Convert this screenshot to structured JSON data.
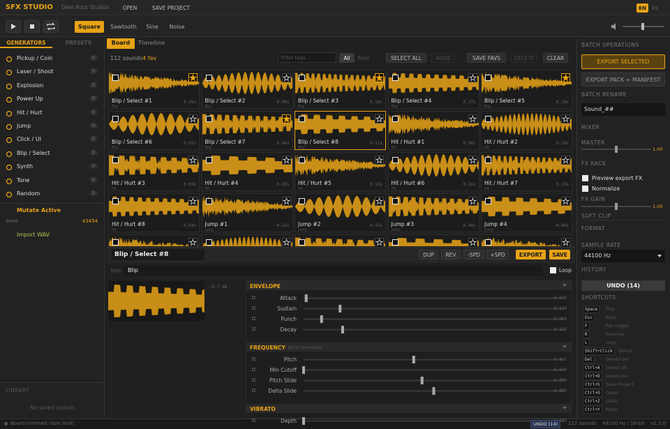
{
  "app": {
    "title": "SFX STUDIO",
    "studio": "Deer Rock Studios",
    "menu": [
      "OPEN",
      "SAVE PROJECT"
    ],
    "langs": [
      "EN",
      "ES"
    ],
    "active_lang": 0
  },
  "toolbar": {
    "waves": [
      "Square",
      "Sawtooth",
      "Sine",
      "Noise"
    ],
    "active_wave": 0
  },
  "sidebar": {
    "tabs": [
      "GENERATORS",
      "PRESETS"
    ],
    "generators": [
      {
        "name": "Pickup / Coin",
        "count": 0
      },
      {
        "name": "Laser / Shoot",
        "count": 0
      },
      {
        "name": "Explosion",
        "count": 0
      },
      {
        "name": "Power Up",
        "count": 0
      },
      {
        "name": "Hit / Hurt",
        "count": 0
      },
      {
        "name": "Jump",
        "count": 0
      },
      {
        "name": "Click / UI",
        "count": 0
      },
      {
        "name": "Blip / Select",
        "count": 0
      },
      {
        "name": "Synth",
        "count": 0
      },
      {
        "name": "Tone",
        "count": 0
      },
      {
        "name": "Random",
        "count": 0
      }
    ],
    "mutate": "Mutate Active",
    "seed_label": "Seed",
    "seed": 43454,
    "import": "Import WAV",
    "library_title": "LIBRARY",
    "library_empty": "No saved sounds"
  },
  "board": {
    "tabs": [
      "Board",
      "Timeline"
    ],
    "count": "112 sounds",
    "favs": "4 fav",
    "filter_placeholder": "Filter tags...",
    "filters": [
      "All",
      "Favs"
    ],
    "actions": [
      "SELECT ALL",
      "NONE",
      "SAVE FAVS",
      "DELETE",
      "CLEAR"
    ],
    "selected": 7,
    "cards": [
      {
        "name": "Blip / Select #1",
        "tag": "Blip",
        "duration": "0.18s",
        "fav": true
      },
      {
        "name": "Blip / Select #2",
        "tag": "Blip",
        "duration": "0.08s",
        "fav": false
      },
      {
        "name": "Blip / Select #3",
        "tag": "Blip",
        "duration": "0.18s",
        "fav": true
      },
      {
        "name": "Blip / Select #4",
        "tag": "Blip",
        "duration": "0.17s",
        "fav": false
      },
      {
        "name": "Blip / Select #5",
        "tag": "Blip",
        "duration": "0.18s",
        "fav": true
      },
      {
        "name": "Blip / Select #6",
        "tag": "Blip",
        "duration": "0.02s",
        "fav": false
      },
      {
        "name": "Blip / Select #7",
        "tag": "Blip",
        "duration": "0.04s",
        "fav": true
      },
      {
        "name": "Blip / Select #8",
        "tag": "Blip",
        "duration": "0.11s",
        "fav": false
      },
      {
        "name": "Hit / Hurt #1",
        "tag": "Hit",
        "duration": "0.08s",
        "fav": false
      },
      {
        "name": "Hit / Hurt #2",
        "tag": "Hit",
        "duration": "0.18s",
        "fav": false
      },
      {
        "name": "Hit / Hurt #3",
        "tag": "Hit",
        "duration": "0.09s",
        "fav": false
      },
      {
        "name": "Hit / Hurt #4",
        "tag": "Hit",
        "duration": "0.03s",
        "fav": false
      },
      {
        "name": "Hit / Hurt #5",
        "tag": "Hit",
        "duration": "0.13s",
        "fav": false
      },
      {
        "name": "Hit / Hurt #6",
        "tag": "Hit",
        "duration": "0.16s",
        "fav": false
      },
      {
        "name": "Hit / Hurt #7",
        "tag": "Hit",
        "duration": "0.15s",
        "fav": false
      },
      {
        "name": "Hit / Hurt #8",
        "tag": "Hit",
        "duration": "0.04s",
        "fav": false
      },
      {
        "name": "Jump #1",
        "tag": "Jump",
        "duration": "0.12s",
        "fav": false
      },
      {
        "name": "Jump #2",
        "tag": "Jump",
        "duration": "0.15s",
        "fav": false
      },
      {
        "name": "Jump #3",
        "tag": "Jump",
        "duration": "0.44s",
        "fav": false
      },
      {
        "name": "Jump #4",
        "tag": "Jump",
        "duration": "0.08s",
        "fav": false
      }
    ]
  },
  "editor": {
    "name": "Blip / Select #8",
    "actions": [
      "DUP",
      "REV",
      "-SPD",
      "+SPD",
      "EXPORT",
      "SAVE"
    ],
    "tags_label": "Tags",
    "tags": "Blip",
    "loop": "Loop",
    "peak": "-0.7 dB",
    "sections": [
      {
        "title": "ENVELOPE",
        "params": [
          {
            "name": "Attack",
            "value": 0.01,
            "label": "0.010",
            "min": 0,
            "max": 1
          },
          {
            "name": "Sustain",
            "value": 0.14,
            "label": "0.140",
            "min": 0,
            "max": 1
          },
          {
            "name": "Punch",
            "value": 0.069,
            "label": "0.069",
            "min": 0,
            "max": 1
          },
          {
            "name": "Decay",
            "value": 0.15,
            "label": "0.150",
            "min": 0,
            "max": 1
          }
        ]
      },
      {
        "title": "FREQUENCY",
        "subtitle": "— pitch envelope",
        "params": [
          {
            "name": "Pitch",
            "value": 0.423,
            "label": "0.423",
            "min": 0,
            "max": 1
          },
          {
            "name": "Min Cutoff",
            "value": 0,
            "label": "0.000",
            "min": 0,
            "max": 1
          },
          {
            "name": "Pitch Slide",
            "value": -0.09,
            "label": "-0.090",
            "min": -1,
            "max": 1
          },
          {
            "name": "Delta Slide",
            "value": 0,
            "label": "0.000",
            "min": -1,
            "max": 1
          }
        ]
      },
      {
        "title": "VIBRATO",
        "params": [
          {
            "name": "Depth",
            "value": 0,
            "label": "0.000",
            "min": 0,
            "max": 1
          }
        ]
      }
    ]
  },
  "right": {
    "batch_title": "BATCH OPERATIONS",
    "export_selected": "EXPORT SELECTED",
    "export_pack": "EXPORT PACK + MANIFEST",
    "rename_title": "BATCH RENAME",
    "rename_value": "Sound_##",
    "mixer_title": "MIXER",
    "master_label": "MASTER",
    "master": 1,
    "master_label_value": "1.00",
    "fx_title": "FX RACK",
    "preview_fx": "Preview export FX",
    "normalize": "Normalize",
    "fx_gain_label": "FX GAIN",
    "fx_gain": 1,
    "fx_gain_label_value": "1.00",
    "soft_clip": "SOFT CLIP",
    "format_title": "FORMAT",
    "sample_rate_label": "SAMPLE RATE",
    "sample_rate": "44100 Hz",
    "history_title": "HISTORY",
    "undo": "UNDO (14)",
    "shortcuts_title": "SHORTCUTS",
    "shortcuts": [
      {
        "key": "Space",
        "action": "Play"
      },
      {
        "key": "Esc",
        "action": "Stop"
      },
      {
        "key": "F",
        "action": "Fav toggle"
      },
      {
        "key": "R",
        "action": "Reverse"
      },
      {
        "key": "L",
        "action": "Loop"
      },
      {
        "key": "Shift+Click",
        "action": "Select"
      },
      {
        "key": "Del",
        "action": "Delete sel"
      },
      {
        "key": "Ctrl+A",
        "action": "Select all"
      },
      {
        "key": "Ctrl+D",
        "action": "Duplicate"
      },
      {
        "key": "Ctrl+S",
        "action": "Save Project"
      },
      {
        "key": "Ctrl+O",
        "action": "Open"
      },
      {
        "key": "Ctrl+Z",
        "action": "Undo"
      },
      {
        "key": "Ctrl+Y",
        "action": "Redo"
      }
    ]
  },
  "status": {
    "message": "Board trimmed (size limit)",
    "undo": "UNDO (14)",
    "count": "112 sounds",
    "format": "44100 Hz / 16-bit",
    "version": "v1.3.0"
  }
}
